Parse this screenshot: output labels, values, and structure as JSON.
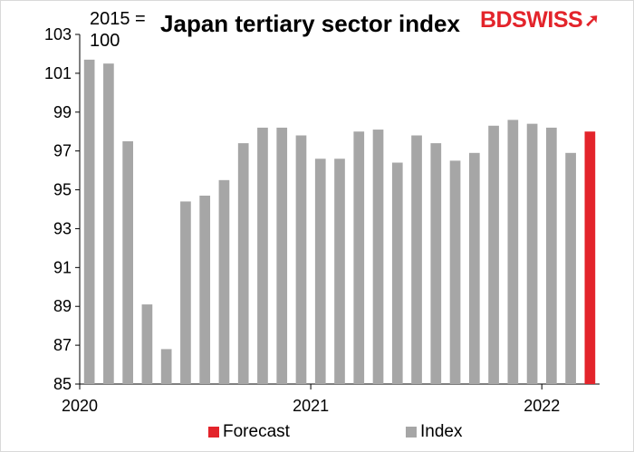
{
  "chart_data": {
    "type": "bar",
    "title": "Japan tertiary sector index",
    "unit_note": "2015 = 100",
    "ylim": [
      85,
      103
    ],
    "yticks": [
      85,
      87,
      89,
      91,
      93,
      95,
      97,
      99,
      101,
      103
    ],
    "x_labels": [
      {
        "label": "2020",
        "at_index": 0
      },
      {
        "label": "2021",
        "at_index": 12
      },
      {
        "label": "2022",
        "at_index": 24
      }
    ],
    "series": [
      {
        "name": "Index",
        "color": "#a6a6a6",
        "values": [
          101.7,
          101.5,
          97.5,
          89.1,
          86.8,
          94.4,
          94.7,
          95.5,
          97.4,
          98.2,
          98.2,
          97.8,
          96.6,
          96.6,
          98.0,
          98.1,
          96.4,
          97.8,
          97.4,
          96.5,
          96.9,
          98.3,
          98.6,
          98.4,
          98.2,
          96.9,
          null
        ]
      },
      {
        "name": "Forecast",
        "color": "#e3242b",
        "values": [
          null,
          null,
          null,
          null,
          null,
          null,
          null,
          null,
          null,
          null,
          null,
          null,
          null,
          null,
          null,
          null,
          null,
          null,
          null,
          null,
          null,
          null,
          null,
          null,
          null,
          null,
          98.0
        ]
      }
    ],
    "grid": false,
    "legend_position": "bottom"
  },
  "header": {
    "title": "Japan tertiary sector index",
    "unit_note": "2015 = 100"
  },
  "logo": {
    "part1": "BD",
    "part2": "SWISS"
  },
  "legend": {
    "forecast": "Forecast",
    "index": "Index"
  }
}
